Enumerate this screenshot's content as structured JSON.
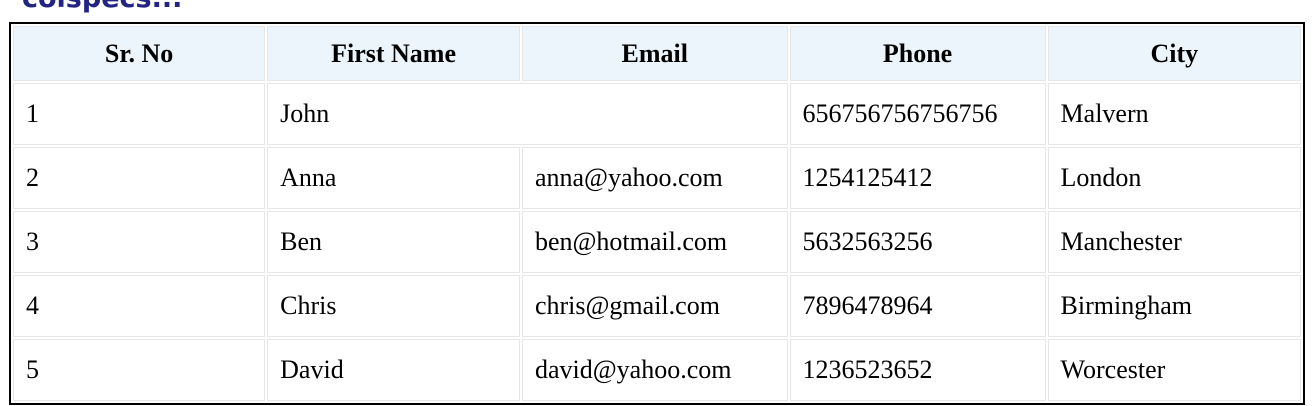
{
  "title": {
    "text": "colspecs..."
  },
  "table": {
    "headers": [
      {
        "label": "Sr. No"
      },
      {
        "label": "First Name"
      },
      {
        "label": "Email"
      },
      {
        "label": "Phone"
      },
      {
        "label": "City"
      }
    ],
    "rows": [
      {
        "cells": [
          {
            "text": "1"
          },
          {
            "text": "John",
            "colspan": 2
          },
          {
            "text": "656756756756756"
          },
          {
            "text": "Malvern"
          }
        ]
      },
      {
        "cells": [
          {
            "text": "2"
          },
          {
            "text": "Anna"
          },
          {
            "text": "anna@yahoo.com"
          },
          {
            "text": "1254125412"
          },
          {
            "text": "London"
          }
        ]
      },
      {
        "cells": [
          {
            "text": "3"
          },
          {
            "text": "Ben"
          },
          {
            "text": "ben@hotmail.com"
          },
          {
            "text": "5632563256"
          },
          {
            "text": "Manchester"
          }
        ]
      },
      {
        "cells": [
          {
            "text": "4"
          },
          {
            "text": "Chris"
          },
          {
            "text": "chris@gmail.com"
          },
          {
            "text": "7896478964"
          },
          {
            "text": "Birmingham"
          }
        ]
      },
      {
        "cells": [
          {
            "text": "5"
          },
          {
            "text": "David"
          },
          {
            "text": "david@yahoo.com"
          },
          {
            "text": "1236523652"
          },
          {
            "text": "Worcester"
          }
        ]
      }
    ],
    "column_widths_pct": [
      19.7,
      19.75,
      20.75,
      20.0,
      19.8
    ]
  },
  "colors": {
    "title_text": "#232383",
    "header_background": "#ecf5fb",
    "outer_border": "#000000",
    "inner_border": "#e6e6e6",
    "cell_background": "#ffffff"
  }
}
